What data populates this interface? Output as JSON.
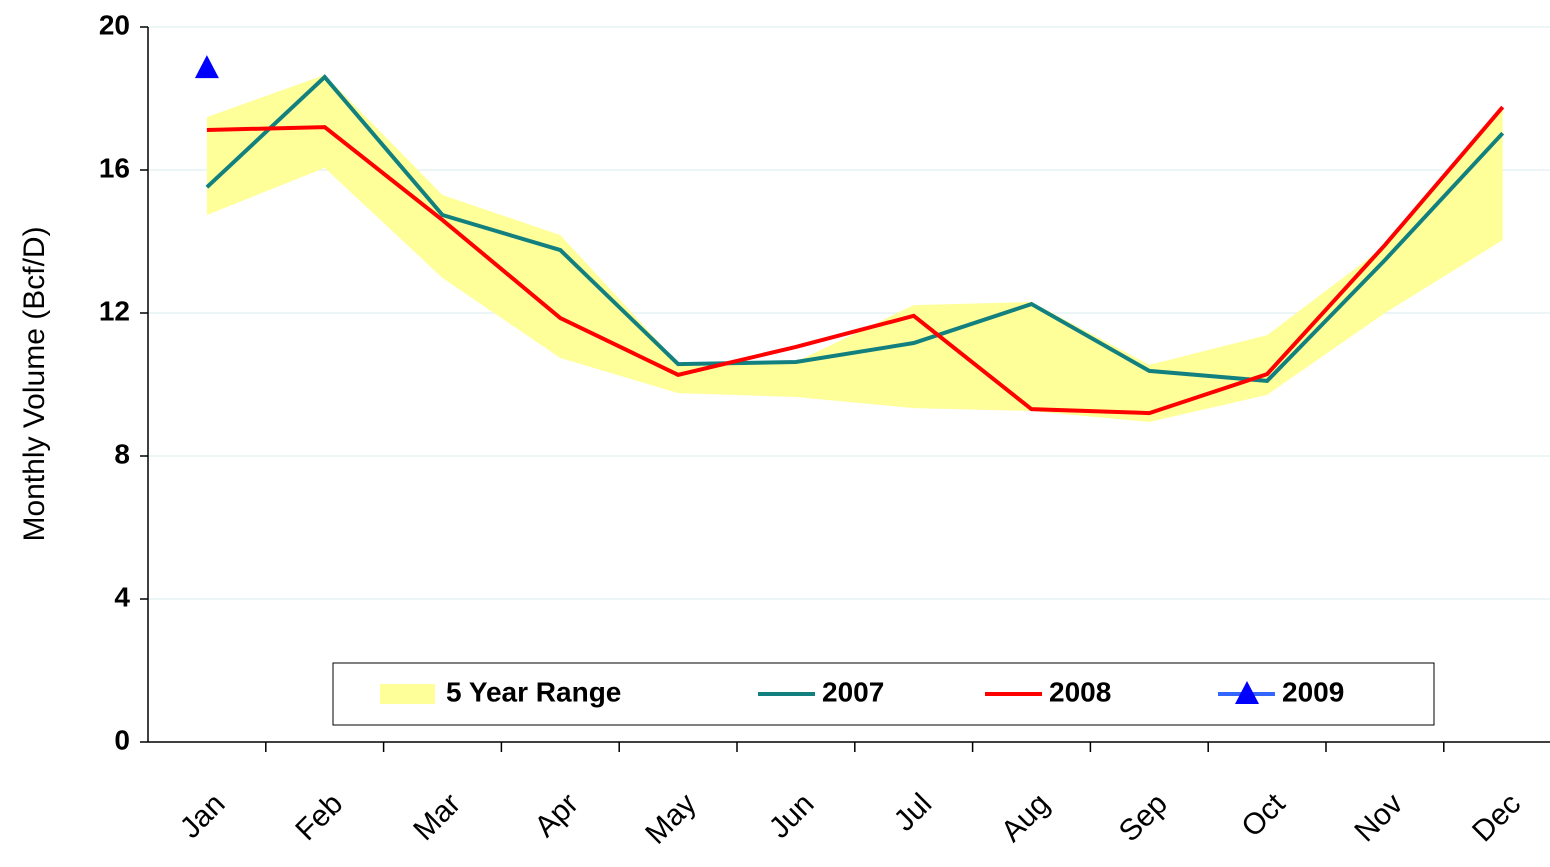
{
  "chart_data": {
    "type": "line",
    "y_label": "Monthly Volume (Bcf/D)",
    "categories": [
      "Jan",
      "Feb",
      "Mar",
      "Apr",
      "May",
      "Jun",
      "Jul",
      "Aug",
      "Sep",
      "Oct",
      "Nov",
      "Dec"
    ],
    "ylim": [
      0,
      20
    ],
    "yticks": [
      0,
      4,
      8,
      12,
      16,
      20
    ],
    "grid": true,
    "legend": "bottom",
    "series": [
      {
        "name": "5 Year Range",
        "kind": "range",
        "color": "#ffff99",
        "low": [
          14.74,
          16.06,
          12.98,
          10.74,
          9.76,
          9.65,
          9.34,
          9.26,
          8.95,
          9.71,
          12.0,
          14.04
        ],
        "high": [
          17.48,
          18.66,
          15.3,
          14.18,
          10.6,
          10.63,
          12.22,
          12.31,
          10.55,
          11.38,
          13.87,
          17.76
        ]
      },
      {
        "name": "2007",
        "color": "#138080",
        "values": [
          15.52,
          18.6,
          14.74,
          13.76,
          10.57,
          10.63,
          11.16,
          12.25,
          10.38,
          10.1,
          13.48,
          17.03
        ]
      },
      {
        "name": "2008",
        "color": "#ff0000",
        "values": [
          17.12,
          17.2,
          14.6,
          11.86,
          10.27,
          11.05,
          11.92,
          9.31,
          9.2,
          10.29,
          13.9,
          17.76
        ]
      },
      {
        "name": "2009",
        "color": "#3366ff",
        "marker": "triangle",
        "marker_color": "#0000ff",
        "values": [
          18.85,
          null,
          null,
          null,
          null,
          null,
          null,
          null,
          null,
          null,
          null,
          null
        ]
      }
    ]
  }
}
